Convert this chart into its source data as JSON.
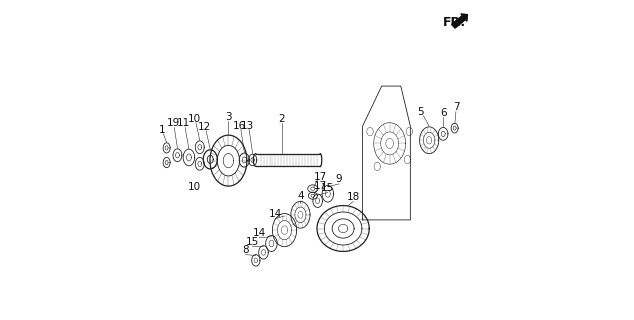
{
  "background_color": "#ffffff",
  "line_color": "#222222",
  "label_fontsize": 7.5,
  "fig_width": 6.34,
  "fig_height": 3.2,
  "dpi": 100
}
